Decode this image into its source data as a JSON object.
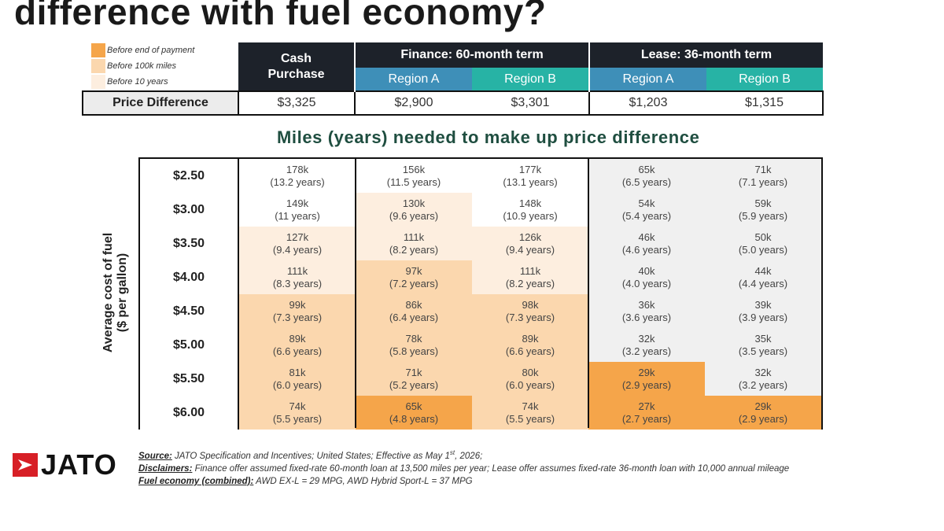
{
  "title": "difference with fuel economy?",
  "colors": {
    "before_end_of_payment": "#f5a54a",
    "before_100k_miles": "#fbd7ae",
    "before_10_years": "#fdeedf",
    "lease_neutral": "#f0f0f0",
    "header_dark": "#1d222a",
    "region_a": "#3e8fb8",
    "region_b": "#27b3a5",
    "subtitle": "#1f4e40",
    "logo_red": "#d71f26"
  },
  "legend": [
    {
      "label": "Before end of payment",
      "color": "#f5a54a"
    },
    {
      "label": "Before 100k miles",
      "color": "#fbd7ae"
    },
    {
      "label": "Before 10 years",
      "color": "#fdeedf"
    }
  ],
  "header": {
    "cash": "Cash Purchase",
    "finance": "Finance: 60-month term",
    "lease": "Lease: 36-month term",
    "regions": [
      "Region A",
      "Region B",
      "Region A",
      "Region B"
    ]
  },
  "price_difference": {
    "label": "Price Difference",
    "values": [
      "$3,325",
      "$2,900",
      "$3,301",
      "$1,203",
      "$1,315"
    ]
  },
  "chart_data": {
    "type": "table",
    "title": "Miles (years) needed to make up price difference",
    "ylabel": "Average cost of fuel ($ per gallon)",
    "columns": [
      "Cash Purchase",
      "Finance: 60-month term Region A",
      "Finance: 60-month term Region B",
      "Lease: 36-month term Region A",
      "Lease: 36-month term Region B"
    ],
    "rows": [
      {
        "price": "$2.50",
        "cells": [
          {
            "miles": "178k",
            "years": "(13.2 years)",
            "c": "none"
          },
          {
            "miles": "156k",
            "years": "(11.5 years)",
            "c": "none"
          },
          {
            "miles": "177k",
            "years": "(13.1 years)",
            "c": "none"
          },
          {
            "miles": "65k",
            "years": "(6.5 years)",
            "c": "gray"
          },
          {
            "miles": "71k",
            "years": "(7.1 years)",
            "c": "gray"
          }
        ]
      },
      {
        "price": "$3.00",
        "cells": [
          {
            "miles": "149k",
            "years": "(11 years)",
            "c": "none"
          },
          {
            "miles": "130k",
            "years": "(9.6 years)",
            "c": "light"
          },
          {
            "miles": "148k",
            "years": "(10.9 years)",
            "c": "none"
          },
          {
            "miles": "54k",
            "years": "(5.4 years)",
            "c": "gray"
          },
          {
            "miles": "59k",
            "years": "(5.9 years)",
            "c": "gray"
          }
        ]
      },
      {
        "price": "$3.50",
        "cells": [
          {
            "miles": "127k",
            "years": "(9.4 years)",
            "c": "light"
          },
          {
            "miles": "111k",
            "years": "(8.2 years)",
            "c": "light"
          },
          {
            "miles": "126k",
            "years": "(9.4 years)",
            "c": "light"
          },
          {
            "miles": "46k",
            "years": "(4.6 years)",
            "c": "gray"
          },
          {
            "miles": "50k",
            "years": "(5.0 years)",
            "c": "gray"
          }
        ]
      },
      {
        "price": "$4.00",
        "cells": [
          {
            "miles": "111k",
            "years": "(8.3 years)",
            "c": "light"
          },
          {
            "miles": "97k",
            "years": "(7.2 years)",
            "c": "medium"
          },
          {
            "miles": "111k",
            "years": "(8.2 years)",
            "c": "light"
          },
          {
            "miles": "40k",
            "years": "(4.0 years)",
            "c": "gray"
          },
          {
            "miles": "44k",
            "years": "(4.4 years)",
            "c": "gray"
          }
        ]
      },
      {
        "price": "$4.50",
        "cells": [
          {
            "miles": "99k",
            "years": "(7.3 years)",
            "c": "medium"
          },
          {
            "miles": "86k",
            "years": "(6.4 years)",
            "c": "medium"
          },
          {
            "miles": "98k",
            "years": "(7.3 years)",
            "c": "medium"
          },
          {
            "miles": "36k",
            "years": "(3.6 years)",
            "c": "gray"
          },
          {
            "miles": "39k",
            "years": "(3.9 years)",
            "c": "gray"
          }
        ]
      },
      {
        "price": "$5.00",
        "cells": [
          {
            "miles": "89k",
            "years": "(6.6 years)",
            "c": "medium"
          },
          {
            "miles": "78k",
            "years": "(5.8 years)",
            "c": "medium"
          },
          {
            "miles": "89k",
            "years": "(6.6 years)",
            "c": "medium"
          },
          {
            "miles": "32k",
            "years": "(3.2 years)",
            "c": "gray"
          },
          {
            "miles": "35k",
            "years": "(3.5 years)",
            "c": "gray"
          }
        ]
      },
      {
        "price": "$5.50",
        "cells": [
          {
            "miles": "81k",
            "years": "(6.0 years)",
            "c": "medium"
          },
          {
            "miles": "71k",
            "years": "(5.2 years)",
            "c": "medium"
          },
          {
            "miles": "80k",
            "years": "(6.0 years)",
            "c": "medium"
          },
          {
            "miles": "29k",
            "years": "(2.9 years)",
            "c": "dark"
          },
          {
            "miles": "32k",
            "years": "(3.2 years)",
            "c": "gray"
          }
        ]
      },
      {
        "price": "$6.00",
        "cells": [
          {
            "miles": "74k",
            "years": "(5.5 years)",
            "c": "medium"
          },
          {
            "miles": "65k",
            "years": "(4.8 years)",
            "c": "dark"
          },
          {
            "miles": "74k",
            "years": "(5.5 years)",
            "c": "medium"
          },
          {
            "miles": "27k",
            "years": "(2.7 years)",
            "c": "dark"
          },
          {
            "miles": "29k",
            "years": "(2.9 years)",
            "c": "dark"
          }
        ]
      }
    ]
  },
  "logo_text": "JATO",
  "notes": {
    "source_label": "Source:",
    "source_text": " JATO Specification and Incentives; United States; Effective as May 1",
    "source_sup": "st",
    "source_end": ", 2026;",
    "disclaimers_label": "Disclaimers:",
    "disclaimers_text": " Finance offer assumed fixed-rate 60-month loan at 13,500 miles per year; Lease offer assumes fixed-rate 36-month loan with 10,000 annual mileage",
    "fuel_label": "Fuel economy (combined):",
    "fuel_text": " AWD EX-L = 29 MPG, AWD Hybrid Sport-L = 37 MPG"
  }
}
